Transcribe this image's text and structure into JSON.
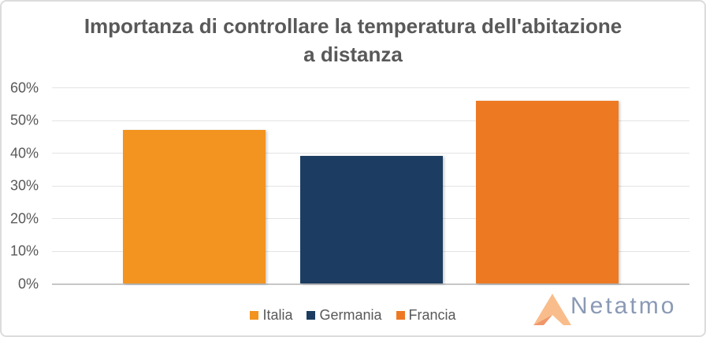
{
  "title": {
    "line1": "Importanza di controllare la temperatura dell'abitazione",
    "line2": "a distanza"
  },
  "chart_data": {
    "type": "bar",
    "title": "Importanza di controllare la temperatura dell'abitazione a distanza",
    "categories": [
      "Italia",
      "Germania",
      "Francia"
    ],
    "values": [
      47,
      39,
      56
    ],
    "value_suffix": "%",
    "ylim": [
      0,
      60
    ],
    "yticks": [
      0,
      10,
      20,
      30,
      40,
      50,
      60
    ],
    "ytick_labels": [
      "0%",
      "10%",
      "20%",
      "30%",
      "40%",
      "50%",
      "60%"
    ],
    "grid": true,
    "legend_position": "bottom",
    "series_colors": [
      "#F2941F",
      "#1C3D61",
      "#ED7A23"
    ]
  },
  "legend": {
    "items": [
      {
        "label": "Italia",
        "color": "#F2941F"
      },
      {
        "label": "Germania",
        "color": "#1C3D61"
      },
      {
        "label": "Francia",
        "color": "#ED7A23"
      }
    ]
  },
  "branding": {
    "logo_text": "Netatmo",
    "logo_text_color": "#8A99B5",
    "icon_main_color": "#F9BD8C",
    "icon_fold_color": "#EF976B"
  }
}
